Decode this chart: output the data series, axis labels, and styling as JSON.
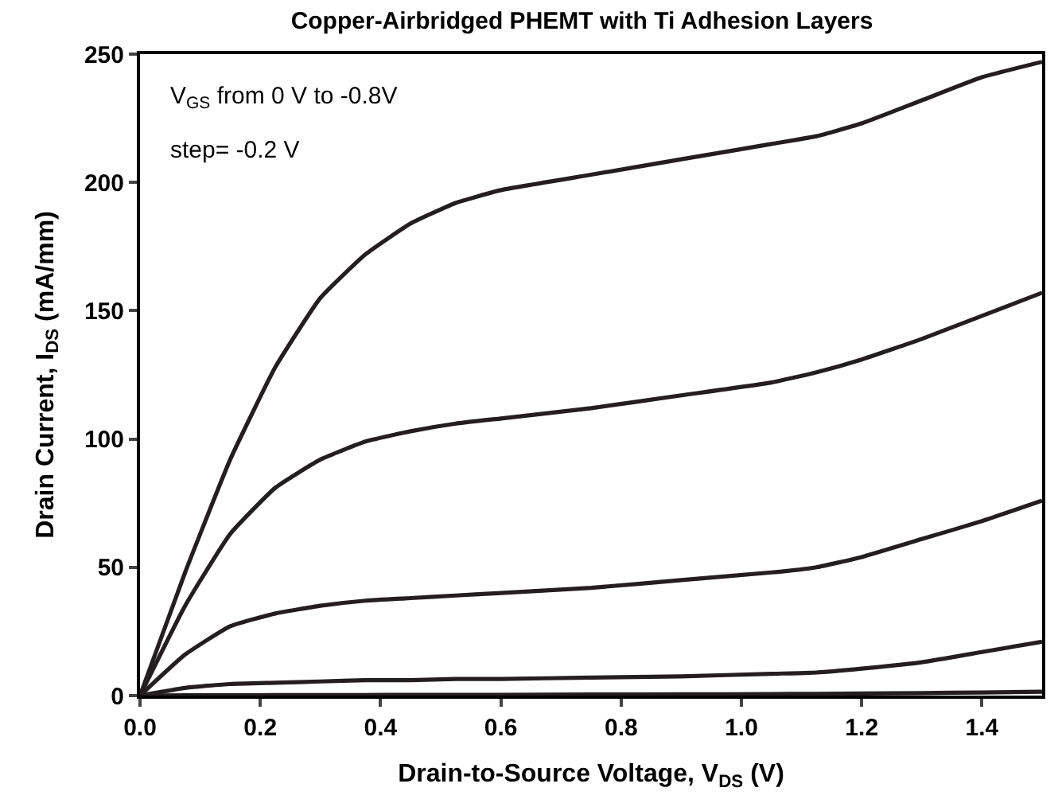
{
  "chart_data": {
    "type": "line",
    "title": "Copper-Airbridged PHEMT with Ti Adhesion Layers",
    "xlabel": "Drain-to-Source Voltage, V$_{DS}$ (V)",
    "ylabel": "Drain Current, I$_{DS}$ (mA/mm)",
    "annotations": [
      "V$_{GS}$ from 0 V to -0.8V",
      "step= -0.2 V"
    ],
    "x": [
      0,
      0.075,
      0.15,
      0.225,
      0.3,
      0.375,
      0.45,
      0.525,
      0.6,
      0.75,
      0.9,
      1.05,
      1.125,
      1.2,
      1.3,
      1.4,
      1.5
    ],
    "series": [
      {
        "color": "#231f20",
        "values": [
          0,
          48,
          92,
          128,
          155,
          172,
          184,
          192,
          197,
          203,
          209,
          215,
          218,
          223,
          232,
          241,
          247
        ]
      },
      {
        "color": "#231f20",
        "values": [
          0,
          35,
          63,
          81,
          92,
          99,
          103,
          106,
          108,
          112,
          117,
          122,
          126,
          131,
          139,
          148,
          157
        ]
      },
      {
        "color": "#231f20",
        "values": [
          0,
          16,
          27,
          32,
          35,
          37,
          38,
          39,
          40,
          42,
          45,
          48,
          50,
          54,
          61,
          68,
          76
        ]
      },
      {
        "color": "#231f20",
        "values": [
          0,
          3,
          4.5,
          5,
          5.5,
          6,
          6,
          6.5,
          6.5,
          7,
          7.5,
          8.5,
          9,
          10.5,
          13,
          17,
          21
        ]
      },
      {
        "color": "#231f20",
        "values": [
          0,
          0.1,
          0.1,
          0.2,
          0.2,
          0.2,
          0.3,
          0.3,
          0.3,
          0.4,
          0.5,
          0.6,
          0.7,
          0.8,
          1,
          1.2,
          1.5
        ]
      }
    ],
    "xlim": [
      0,
      1.5
    ],
    "ylim": [
      0,
      250
    ],
    "xticks": [
      {
        "value": 0,
        "label": "0.0"
      },
      {
        "value": 0.2,
        "label": "0.2"
      },
      {
        "value": 0.4,
        "label": "0.4"
      },
      {
        "value": 0.6,
        "label": "0.6"
      },
      {
        "value": 0.8,
        "label": "0.8"
      },
      {
        "value": 1.0,
        "label": "1.0"
      },
      {
        "value": 1.2,
        "label": "1.2"
      },
      {
        "value": 1.4,
        "label": "1.4"
      }
    ],
    "yticks": [
      0,
      50,
      100,
      150,
      200,
      250
    ],
    "marker": "none",
    "line_style": "solid"
  }
}
